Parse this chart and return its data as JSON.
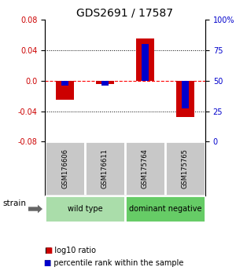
{
  "title": "GDS2691 / 17587",
  "samples": [
    "GSM176606",
    "GSM176611",
    "GSM175764",
    "GSM175765"
  ],
  "log10_ratio": [
    -0.025,
    -0.005,
    0.055,
    -0.048
  ],
  "percentile_rank": [
    0.46,
    0.46,
    0.8,
    0.27
  ],
  "groups": [
    {
      "name": "wild type",
      "samples": [
        0,
        1
      ],
      "color": "#aaddaa"
    },
    {
      "name": "dominant negative",
      "samples": [
        2,
        3
      ],
      "color": "#66cc66"
    }
  ],
  "ylim": [
    -0.08,
    0.08
  ],
  "yticks_left": [
    -0.08,
    -0.04,
    0.0,
    0.04,
    0.08
  ],
  "yticks_right": [
    0,
    25,
    50,
    75,
    100
  ],
  "red_color": "#cc0000",
  "blue_color": "#0000cc",
  "zero_line_color": "#ff0000",
  "sample_box_color": "#c8c8c8",
  "legend_red": "log10 ratio",
  "legend_blue": "percentile rank within the sample",
  "strain_label": "strain",
  "title_fontsize": 10,
  "tick_fontsize": 7,
  "sample_fontsize": 6,
  "group_fontsize": 7,
  "legend_fontsize": 7
}
